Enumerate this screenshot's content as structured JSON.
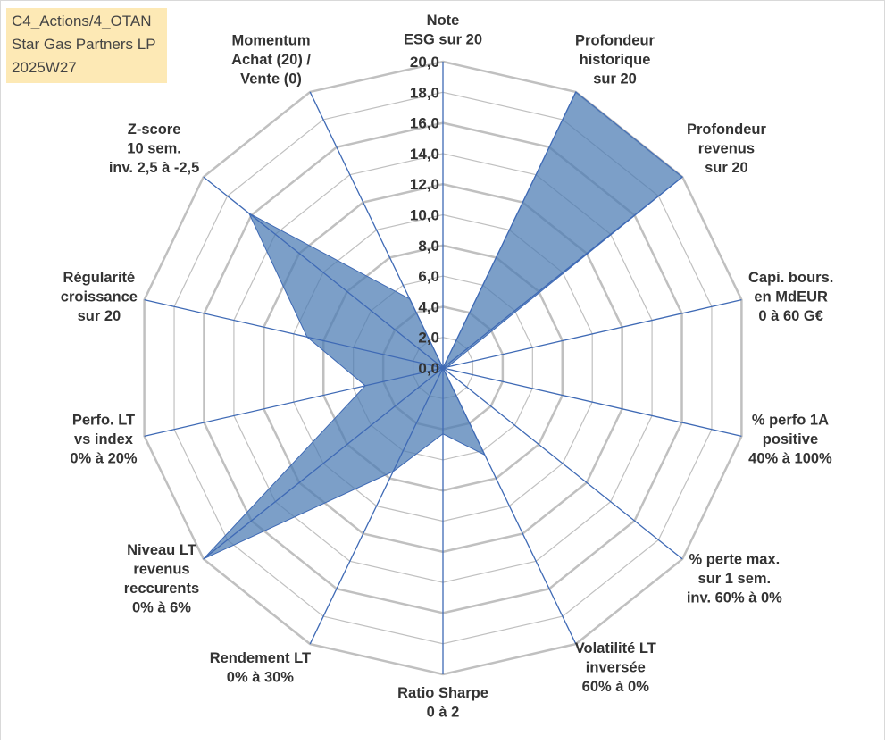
{
  "title_box": {
    "line1": "C4_Actions/4_OTAN",
    "line2": "Star Gas Partners LP",
    "line3": "2025W27",
    "background": "#fde9b5"
  },
  "colors": {
    "fill": "#4a7ab3",
    "grid": "#c0c0c0",
    "spoke": "#3f6ab5",
    "text": "#333333"
  },
  "chart_data": {
    "type": "radar",
    "ylim": [
      0,
      20
    ],
    "tick_step": 2,
    "tick_labels": [
      "0,0",
      "2,0",
      "4,0",
      "6,0",
      "8,0",
      "10,0",
      "12,0",
      "14,0",
      "16,0",
      "18,0",
      "20,0"
    ],
    "grid": true,
    "legend": "none",
    "axes": [
      {
        "label": [
          "Note",
          "ESG sur 20"
        ],
        "value": 0
      },
      {
        "label": [
          "Profondeur",
          "historique",
          "sur 20"
        ],
        "value": 20
      },
      {
        "label": [
          "Profondeur",
          "revenus",
          "sur 20"
        ],
        "value": 20
      },
      {
        "label": [
          "Capi. bours.",
          "en MdEUR",
          "0 à 60 G€"
        ],
        "value": 0.3
      },
      {
        "label": [
          "% perfo 1A",
          "positive",
          "40% à 100%"
        ],
        "value": 0
      },
      {
        "label": [
          "% perte max.",
          "sur 1 sem.",
          "inv. 60% à 0%"
        ],
        "value": 0
      },
      {
        "label": [
          "Volatilité LT",
          "inversée",
          "60% à 0%"
        ],
        "value": 6.3
      },
      {
        "label": [
          "Ratio Sharpe",
          "0 à 2"
        ],
        "value": 4.3
      },
      {
        "label": [
          "Rendement LT",
          "0% à 30%"
        ],
        "value": 7.5
      },
      {
        "label": [
          "Niveau LT",
          "revenus",
          "reccurents",
          "0% à 6%"
        ],
        "value": 20
      },
      {
        "label": [
          "Perfo. LT",
          "vs index",
          "0% à 20%"
        ],
        "value": 5.2
      },
      {
        "label": [
          "Régularité",
          "croissance",
          "sur 20"
        ],
        "value": 9.1
      },
      {
        "label": [
          "Z-score",
          "10 sem.",
          "inv. 2,5 à -2,5"
        ],
        "value": 16.2
      },
      {
        "label": [
          "Momentum",
          "Achat (20) /",
          "Vente (0)"
        ],
        "value": 5
      }
    ]
  }
}
